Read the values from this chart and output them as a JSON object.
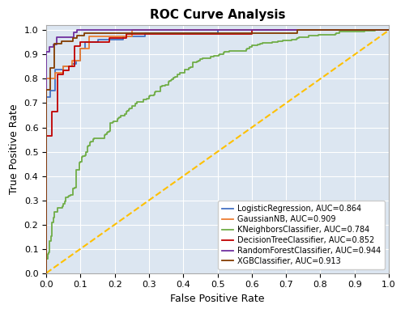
{
  "title": "ROC Curve Analysis",
  "xlabel": "False Positive Rate",
  "ylabel": "True Positive Rate",
  "classifiers": [
    {
      "name": "LogisticRegression, AUC=0.864",
      "auc": 0.864,
      "color": "#4472c4",
      "step": true,
      "n": 80,
      "seed": 1
    },
    {
      "name": "GaussianNB, AUC=0.909",
      "auc": 0.909,
      "color": "#ed7d31",
      "step": true,
      "n": 40,
      "seed": 2
    },
    {
      "name": "KNeighborsClassifier, AUC=0.784",
      "auc": 0.784,
      "color": "#70ad47",
      "step": false,
      "n": 200,
      "seed": 3
    },
    {
      "name": "DecisionTreeClassifier, AUC=0.852",
      "auc": 0.852,
      "color": "#c00000",
      "step": true,
      "n": 60,
      "seed": 4
    },
    {
      "name": "RandomForestClassifier, AUC=0.944",
      "auc": 0.944,
      "color": "#7030a0",
      "step": true,
      "n": 100,
      "seed": 5
    },
    {
      "name": "XGBClassifier, AUC=0.913",
      "auc": 0.913,
      "color": "#833c00",
      "step": true,
      "n": 90,
      "seed": 6
    }
  ],
  "diagonal_color": "#ffc000",
  "bg_color": "#dce6f1",
  "grid_color": "#ffffff",
  "figsize": [
    5.0,
    3.87
  ],
  "dpi": 100,
  "title_fontsize": 11,
  "label_fontsize": 9,
  "tick_fontsize": 8,
  "legend_fontsize": 7,
  "linewidth": 1.3
}
